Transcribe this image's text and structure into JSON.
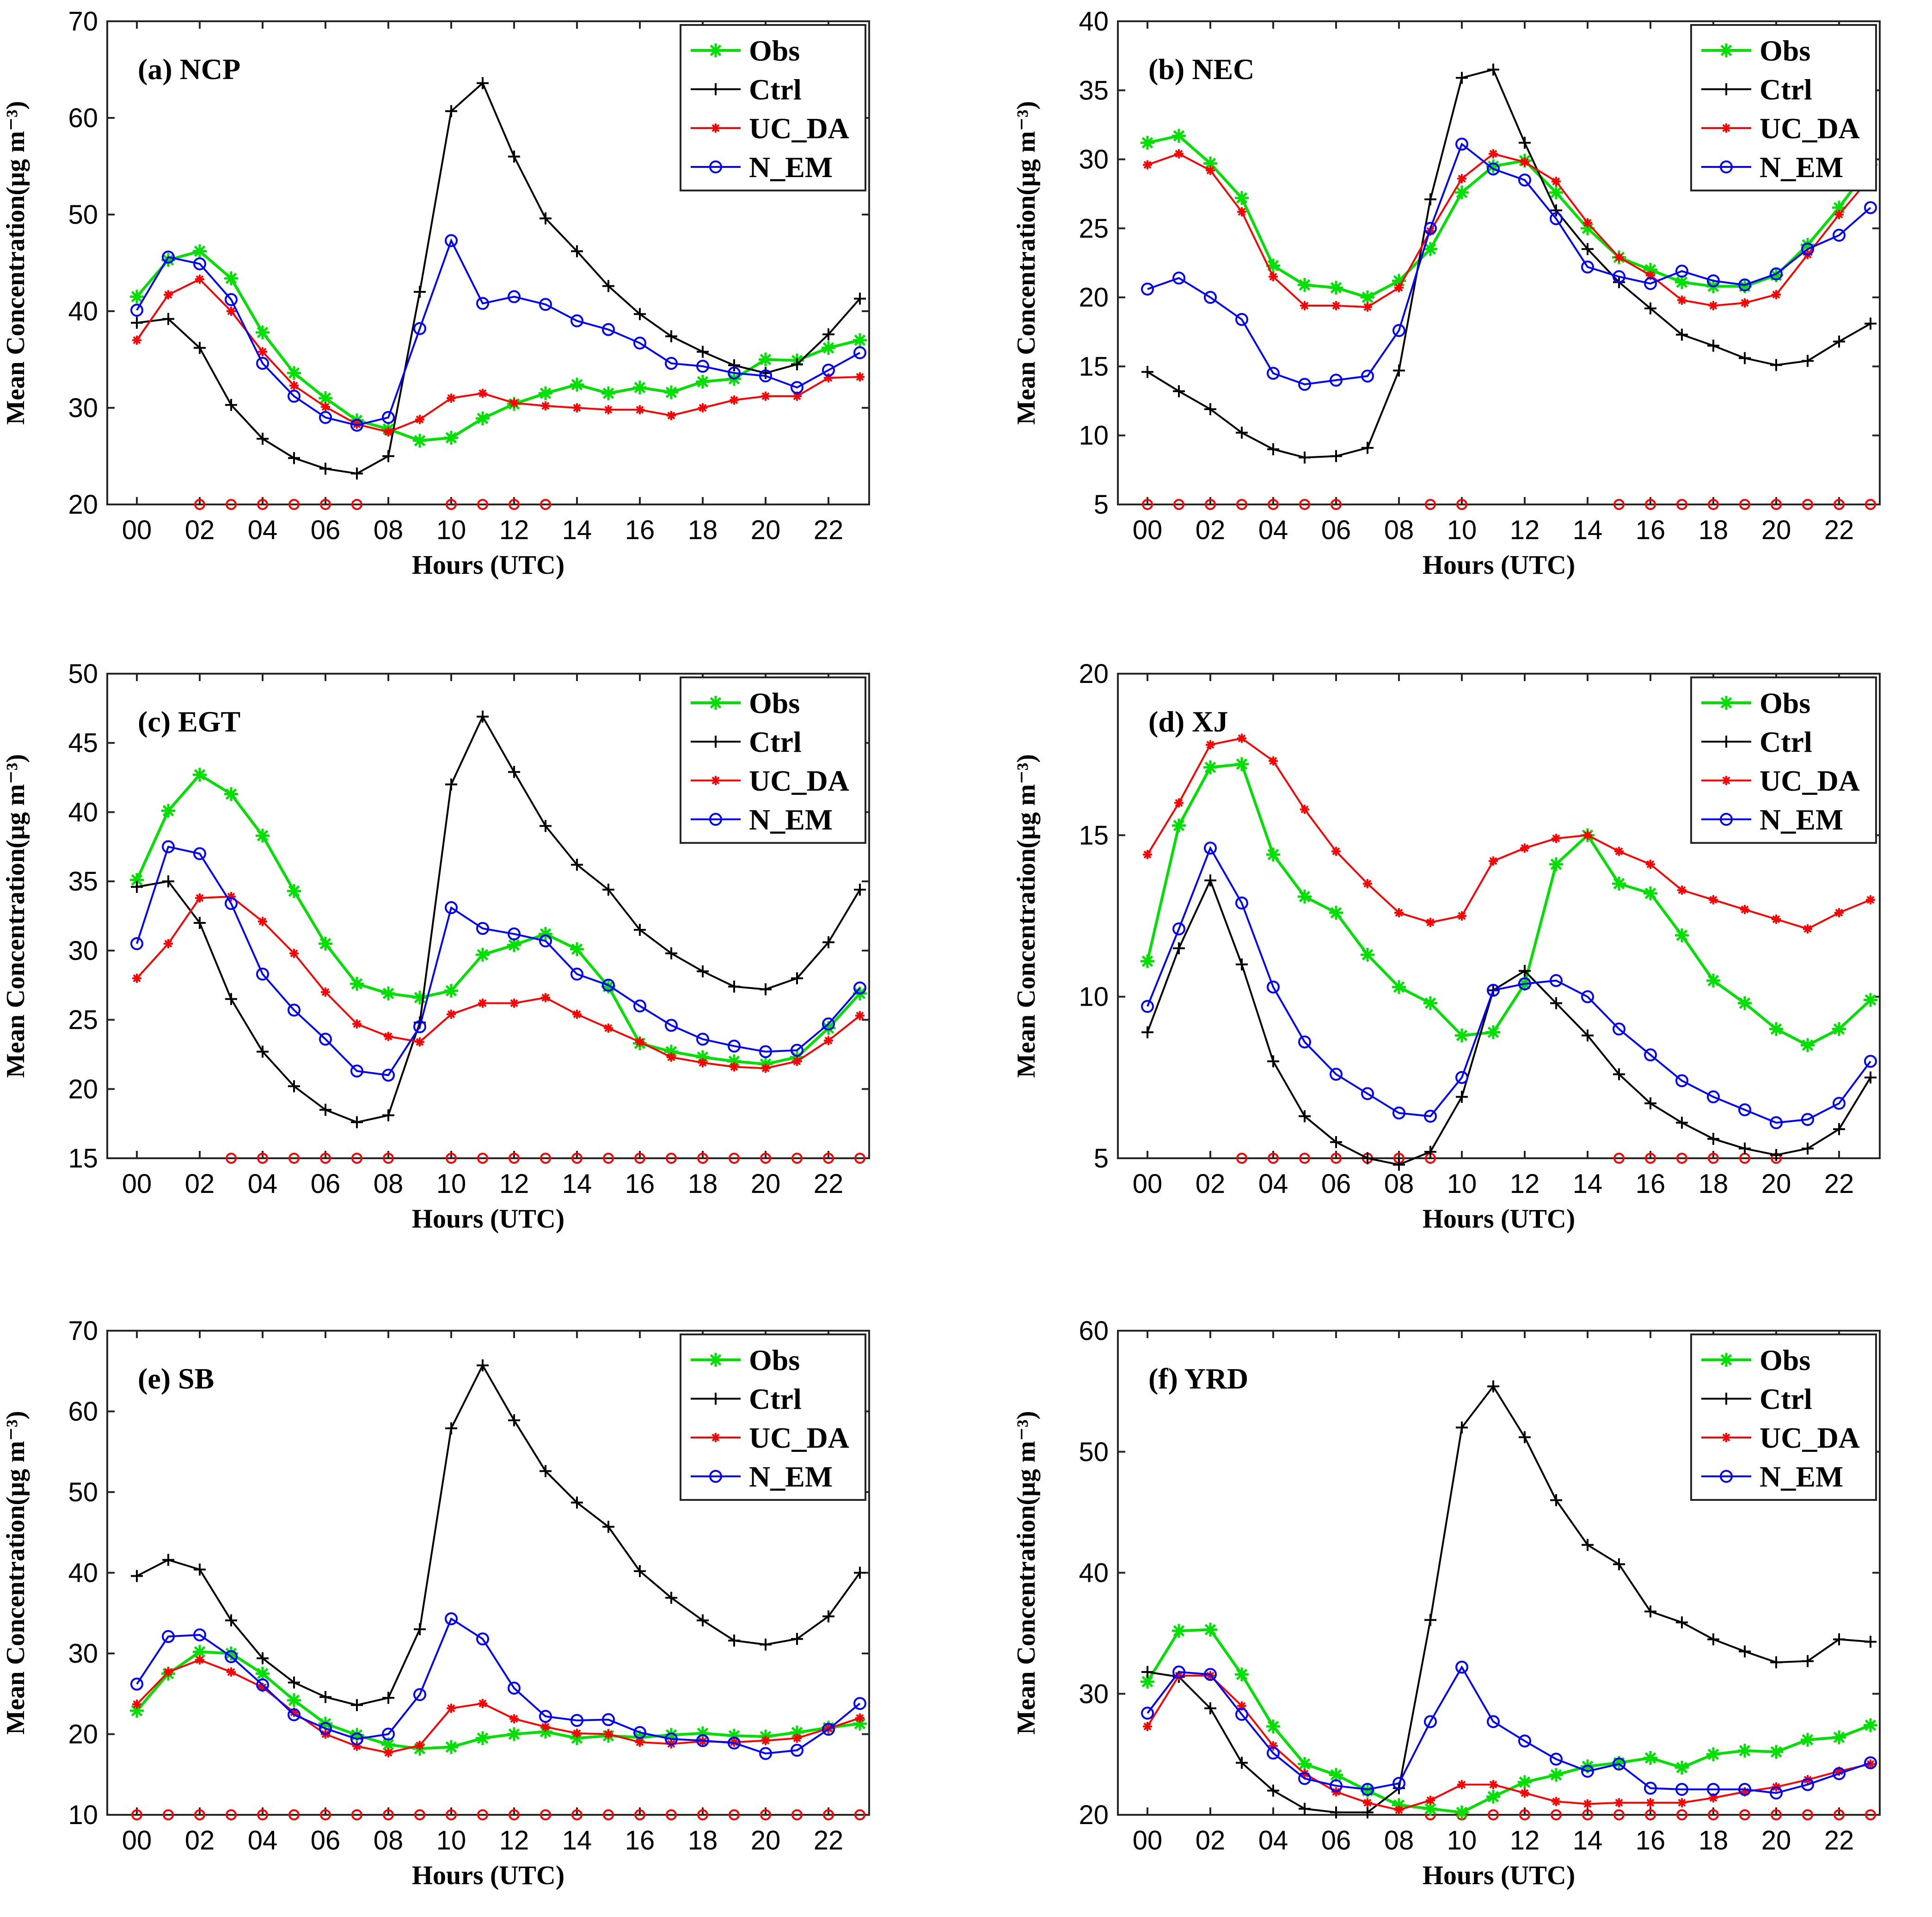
{
  "figure": {
    "series_names": [
      "Obs",
      "Ctrl",
      "UC_DA",
      "N_EM"
    ],
    "colors": {
      "Obs": "#00e000",
      "Ctrl": "#000000",
      "UC_DA": "#ff0000",
      "N_EM": "#0000ff",
      "significance": "#ff0000"
    }
  },
  "chart_data": [
    {
      "type": "line",
      "panel_label": "(a) NCP",
      "xlabel": "Hours (UTC)",
      "ylabel": "Mean Concentration(μg m⁻³)",
      "ylim": [
        20,
        70
      ],
      "yticks": [
        20,
        30,
        40,
        50,
        60,
        70
      ],
      "xticks": [
        "00",
        "02",
        "04",
        "06",
        "08",
        "10",
        "12",
        "14",
        "16",
        "18",
        "20",
        "22"
      ],
      "x": [
        0,
        1,
        2,
        3,
        4,
        5,
        6,
        7,
        8,
        9,
        10,
        11,
        12,
        13,
        14,
        15,
        16,
        17,
        18,
        19,
        20,
        21,
        22,
        23
      ],
      "series": [
        {
          "name": "Obs",
          "values": [
            41.5,
            45.3,
            46.2,
            43.4,
            37.8,
            33.6,
            31.0,
            28.7,
            27.8,
            26.6,
            26.9,
            28.9,
            30.4,
            31.5,
            32.4,
            31.5,
            32.1,
            31.6,
            32.7,
            33.0,
            35.0,
            34.9,
            36.2,
            37.0
          ]
        },
        {
          "name": "Ctrl",
          "values": [
            38.8,
            39.2,
            36.2,
            30.3,
            26.8,
            24.8,
            23.7,
            23.2,
            25.0,
            42.0,
            60.7,
            63.6,
            56.0,
            49.6,
            46.2,
            42.6,
            39.7,
            37.4,
            35.8,
            34.4,
            33.6,
            34.5,
            37.6,
            41.3
          ]
        },
        {
          "name": "UC_DA",
          "values": [
            37.0,
            41.7,
            43.3,
            40.0,
            35.8,
            32.3,
            30.1,
            28.3,
            27.5,
            28.8,
            31.0,
            31.5,
            30.5,
            30.2,
            30.0,
            29.8,
            29.8,
            29.2,
            30.0,
            30.8,
            31.2,
            31.2,
            33.1,
            33.2
          ]
        },
        {
          "name": "N_EM",
          "values": [
            40.1,
            45.6,
            44.9,
            41.2,
            34.6,
            31.2,
            29.0,
            28.2,
            29.0,
            38.2,
            47.3,
            40.8,
            41.5,
            40.7,
            39.0,
            38.1,
            36.7,
            34.6,
            34.3,
            33.6,
            33.3,
            32.1,
            33.9,
            35.7
          ]
        }
      ],
      "significance_hours": [
        2,
        3,
        4,
        5,
        6,
        7,
        10,
        11,
        12,
        13
      ]
    },
    {
      "type": "line",
      "panel_label": "(b) NEC",
      "xlabel": "Hours (UTC)",
      "ylabel": "Mean Concentration(μg m⁻³)",
      "ylim": [
        5,
        40
      ],
      "yticks": [
        5,
        10,
        15,
        20,
        25,
        30,
        35,
        40
      ],
      "xticks": [
        "00",
        "02",
        "04",
        "06",
        "08",
        "10",
        "12",
        "14",
        "16",
        "18",
        "20",
        "22"
      ],
      "x": [
        0,
        1,
        2,
        3,
        4,
        5,
        6,
        7,
        8,
        9,
        10,
        11,
        12,
        13,
        14,
        15,
        16,
        17,
        18,
        19,
        20,
        21,
        22,
        23
      ],
      "series": [
        {
          "name": "Obs",
          "values": [
            31.2,
            31.7,
            29.7,
            27.2,
            22.3,
            20.9,
            20.7,
            20.0,
            21.2,
            23.5,
            27.6,
            29.5,
            29.9,
            27.6,
            25.0,
            22.9,
            22.0,
            21.1,
            20.8,
            20.8,
            21.6,
            23.8,
            26.5,
            29.6
          ]
        },
        {
          "name": "Ctrl",
          "values": [
            14.6,
            13.2,
            11.9,
            10.2,
            9.0,
            8.4,
            8.5,
            9.1,
            14.7,
            27.1,
            35.9,
            36.5,
            31.2,
            26.3,
            23.5,
            21.1,
            19.2,
            17.3,
            16.5,
            15.6,
            15.1,
            15.4,
            16.8,
            18.1
          ]
        },
        {
          "name": "UC_DA",
          "values": [
            29.6,
            30.4,
            29.2,
            26.2,
            21.5,
            19.4,
            19.4,
            19.3,
            20.7,
            24.8,
            28.6,
            30.4,
            29.8,
            28.4,
            25.4,
            22.9,
            21.6,
            19.8,
            19.4,
            19.6,
            20.2,
            23.1,
            26.0,
            28.7
          ]
        },
        {
          "name": "N_EM",
          "values": [
            20.6,
            21.4,
            20.0,
            18.4,
            14.5,
            13.7,
            14.0,
            14.3,
            17.6,
            25.0,
            31.1,
            29.3,
            28.5,
            25.7,
            22.2,
            21.5,
            21.0,
            21.9,
            21.2,
            20.9,
            21.7,
            23.5,
            24.5,
            26.5
          ]
        }
      ],
      "significance_hours": [
        0,
        1,
        2,
        3,
        4,
        5,
        6,
        9,
        10,
        15,
        16,
        17,
        18,
        19,
        20,
        21,
        22,
        23
      ]
    },
    {
      "type": "line",
      "panel_label": "(c) EGT",
      "xlabel": "Hours (UTC)",
      "ylabel": "Mean Concentration(μg m⁻³)",
      "ylim": [
        15,
        50
      ],
      "yticks": [
        15,
        20,
        25,
        30,
        35,
        40,
        45,
        50
      ],
      "xticks": [
        "00",
        "02",
        "04",
        "06",
        "08",
        "10",
        "12",
        "14",
        "16",
        "18",
        "20",
        "22"
      ],
      "x": [
        0,
        1,
        2,
        3,
        4,
        5,
        6,
        7,
        8,
        9,
        10,
        11,
        12,
        13,
        14,
        15,
        16,
        17,
        18,
        19,
        20,
        21,
        22,
        23
      ],
      "series": [
        {
          "name": "Obs",
          "values": [
            35.1,
            40.1,
            42.7,
            41.3,
            38.3,
            34.3,
            30.5,
            27.6,
            26.9,
            26.6,
            27.1,
            29.7,
            30.4,
            31.2,
            30.1,
            27.4,
            23.3,
            22.7,
            22.3,
            22.0,
            21.8,
            22.3,
            24.4,
            26.9
          ]
        },
        {
          "name": "Ctrl",
          "values": [
            34.6,
            35.0,
            32.0,
            26.5,
            22.7,
            20.2,
            18.5,
            17.6,
            18.1,
            24.8,
            42.0,
            46.9,
            42.9,
            39.0,
            36.2,
            34.4,
            31.5,
            29.8,
            28.5,
            27.4,
            27.2,
            28.0,
            30.6,
            34.4
          ]
        },
        {
          "name": "UC_DA",
          "values": [
            28.0,
            30.5,
            33.8,
            33.9,
            32.1,
            29.8,
            27.0,
            24.7,
            23.8,
            23.4,
            25.4,
            26.2,
            26.2,
            26.6,
            25.4,
            24.4,
            23.4,
            22.3,
            21.9,
            21.6,
            21.5,
            22.0,
            23.5,
            25.3
          ]
        },
        {
          "name": "N_EM",
          "values": [
            30.5,
            37.5,
            37.0,
            33.4,
            28.3,
            25.7,
            23.6,
            21.3,
            21.0,
            24.5,
            33.1,
            31.6,
            31.2,
            30.7,
            28.3,
            27.5,
            26.0,
            24.6,
            23.6,
            23.1,
            22.7,
            22.8,
            24.7,
            27.3
          ]
        }
      ],
      "significance_hours": [
        3,
        4,
        5,
        6,
        7,
        8,
        10,
        11,
        12,
        13,
        14,
        15,
        16,
        17,
        18,
        19,
        20,
        21,
        22,
        23
      ]
    },
    {
      "type": "line",
      "panel_label": "(d) XJ",
      "xlabel": "Hours (UTC)",
      "ylabel": "Mean Concentration(μg m⁻³)",
      "ylim": [
        5,
        20
      ],
      "yticks": [
        5,
        10,
        15,
        20
      ],
      "xticks": [
        "00",
        "02",
        "04",
        "06",
        "08",
        "10",
        "12",
        "14",
        "16",
        "18",
        "20",
        "22"
      ],
      "x": [
        0,
        1,
        2,
        3,
        4,
        5,
        6,
        7,
        8,
        9,
        10,
        11,
        12,
        13,
        14,
        15,
        16,
        17,
        18,
        19,
        20,
        21,
        22,
        23
      ],
      "series": [
        {
          "name": "Obs",
          "values": [
            11.1,
            15.3,
            17.1,
            17.2,
            14.4,
            13.1,
            12.6,
            11.3,
            10.3,
            9.8,
            8.8,
            8.9,
            10.4,
            14.1,
            15.0,
            13.5,
            13.2,
            11.9,
            10.5,
            9.8,
            9.0,
            8.5,
            9.0,
            9.9
          ]
        },
        {
          "name": "Ctrl",
          "values": [
            8.9,
            11.5,
            13.6,
            11.0,
            8.0,
            6.3,
            5.5,
            5.0,
            4.8,
            5.2,
            6.9,
            10.2,
            10.8,
            9.8,
            8.8,
            7.6,
            6.7,
            6.1,
            5.6,
            5.3,
            5.1,
            5.3,
            5.9,
            7.5
          ]
        },
        {
          "name": "UC_DA",
          "values": [
            14.4,
            16.0,
            17.8,
            18.0,
            17.3,
            15.8,
            14.5,
            13.5,
            12.6,
            12.3,
            12.5,
            14.2,
            14.6,
            14.9,
            15.0,
            14.5,
            14.1,
            13.3,
            13.0,
            12.7,
            12.4,
            12.1,
            12.6,
            13.0
          ]
        },
        {
          "name": "N_EM",
          "values": [
            9.7,
            12.1,
            14.6,
            12.9,
            10.3,
            8.6,
            7.6,
            7.0,
            6.4,
            6.3,
            7.5,
            10.2,
            10.4,
            10.5,
            10.0,
            9.0,
            8.2,
            7.4,
            6.9,
            6.5,
            6.1,
            6.2,
            6.7,
            8.0
          ]
        }
      ],
      "significance_hours": [
        3,
        4,
        5,
        6,
        7,
        8,
        9,
        15,
        16,
        17,
        18,
        19,
        20
      ]
    },
    {
      "type": "line",
      "panel_label": "(e) SB",
      "xlabel": "Hours (UTC)",
      "ylabel": "Mean Concentration(μg m⁻³)",
      "ylim": [
        10,
        70
      ],
      "yticks": [
        10,
        20,
        30,
        40,
        50,
        60,
        70
      ],
      "xticks": [
        "00",
        "02",
        "04",
        "06",
        "08",
        "10",
        "12",
        "14",
        "16",
        "18",
        "20",
        "22"
      ],
      "x": [
        0,
        1,
        2,
        3,
        4,
        5,
        6,
        7,
        8,
        9,
        10,
        11,
        12,
        13,
        14,
        15,
        16,
        17,
        18,
        19,
        20,
        21,
        22,
        23
      ],
      "series": [
        {
          "name": "Obs",
          "values": [
            22.9,
            27.5,
            30.2,
            30.0,
            27.5,
            24.2,
            21.3,
            19.9,
            18.7,
            18.2,
            18.4,
            19.5,
            20.0,
            20.3,
            19.5,
            19.8,
            19.6,
            19.9,
            20.1,
            19.8,
            19.7,
            20.2,
            20.8,
            21.3
          ]
        },
        {
          "name": "Ctrl",
          "values": [
            39.6,
            41.6,
            40.4,
            34.1,
            29.4,
            26.4,
            24.6,
            23.6,
            24.5,
            33.0,
            57.9,
            65.7,
            58.9,
            52.6,
            48.7,
            45.7,
            40.2,
            36.9,
            34.1,
            31.6,
            31.1,
            31.8,
            34.6,
            40.0
          ]
        },
        {
          "name": "UC_DA",
          "values": [
            23.7,
            27.7,
            29.2,
            27.7,
            25.8,
            22.7,
            20.0,
            18.5,
            17.7,
            18.6,
            23.2,
            23.8,
            21.9,
            20.9,
            20.1,
            20.0,
            19.0,
            18.8,
            19.1,
            19.0,
            19.2,
            19.5,
            20.7,
            22.0
          ]
        },
        {
          "name": "N_EM",
          "values": [
            26.2,
            32.1,
            32.3,
            29.6,
            26.1,
            22.4,
            20.7,
            19.4,
            20.0,
            24.9,
            34.3,
            31.8,
            25.7,
            22.2,
            21.7,
            21.8,
            20.2,
            19.4,
            19.2,
            18.9,
            17.6,
            18.0,
            20.6,
            23.8
          ]
        }
      ],
      "significance_hours": [
        0,
        1,
        2,
        3,
        4,
        5,
        6,
        7,
        8,
        9,
        10,
        11,
        12,
        13,
        14,
        15,
        16,
        17,
        18,
        19,
        20,
        21,
        22,
        23
      ]
    },
    {
      "type": "line",
      "panel_label": "(f) YRD",
      "xlabel": "Hours (UTC)",
      "ylabel": "Mean Concentration(μg m⁻³)",
      "ylim": [
        20,
        60
      ],
      "yticks": [
        20,
        30,
        40,
        50,
        60
      ],
      "xticks": [
        "00",
        "02",
        "04",
        "06",
        "08",
        "10",
        "12",
        "14",
        "16",
        "18",
        "20",
        "22"
      ],
      "x": [
        0,
        1,
        2,
        3,
        4,
        5,
        6,
        7,
        8,
        9,
        10,
        11,
        12,
        13,
        14,
        15,
        16,
        17,
        18,
        19,
        20,
        21,
        22,
        23
      ],
      "series": [
        {
          "name": "Obs",
          "values": [
            31.0,
            35.2,
            35.3,
            31.6,
            27.3,
            24.2,
            23.3,
            22.0,
            20.8,
            20.5,
            20.2,
            21.5,
            22.7,
            23.3,
            24.0,
            24.3,
            24.7,
            23.9,
            25.0,
            25.3,
            25.2,
            26.2,
            26.4,
            27.4
          ]
        },
        {
          "name": "Ctrl",
          "values": [
            31.8,
            31.4,
            28.8,
            24.3,
            22.0,
            20.5,
            20.2,
            20.2,
            22.2,
            36.1,
            52.0,
            55.4,
            51.2,
            46.0,
            42.3,
            40.7,
            36.8,
            35.9,
            34.5,
            33.5,
            32.6,
            32.7,
            34.5,
            34.3
          ]
        },
        {
          "name": "UC_DA",
          "values": [
            27.3,
            31.5,
            31.5,
            29.0,
            25.7,
            23.4,
            21.9,
            21.0,
            20.4,
            21.2,
            22.5,
            22.5,
            21.8,
            21.1,
            20.9,
            21.0,
            21.0,
            21.0,
            21.4,
            21.9,
            22.3,
            22.9,
            23.6,
            24.2
          ]
        },
        {
          "name": "N_EM",
          "values": [
            28.4,
            31.8,
            31.6,
            28.3,
            25.1,
            23.0,
            22.4,
            22.1,
            22.6,
            27.7,
            32.2,
            27.7,
            26.1,
            24.6,
            23.6,
            24.2,
            22.2,
            22.1,
            22.1,
            22.1,
            21.8,
            22.5,
            23.4,
            24.3
          ]
        }
      ],
      "significance_hours": [
        9,
        10,
        11,
        12,
        13,
        14,
        15,
        16,
        17,
        18,
        19,
        20,
        21,
        22,
        23
      ]
    }
  ]
}
